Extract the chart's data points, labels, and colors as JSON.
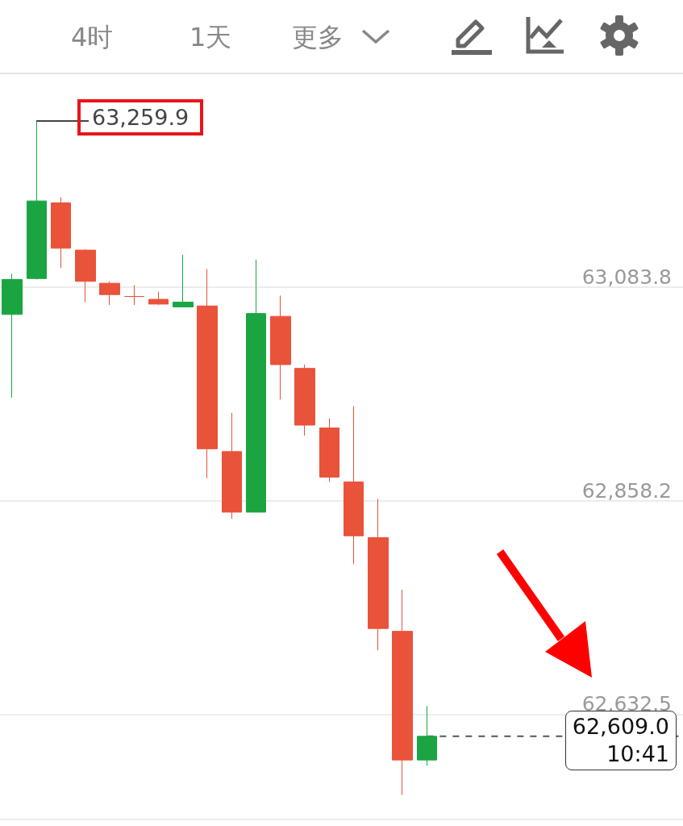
{
  "chart_data": {
    "type": "candlestick",
    "categories": [
      null,
      null,
      null,
      null,
      null,
      null,
      null,
      null,
      null,
      null,
      null,
      null,
      null,
      null,
      null,
      null,
      null,
      null,
      null,
      null,
      null,
      null,
      null,
      null,
      null,
      null,
      null,
      null
    ],
    "ohlc": [
      [
        63055,
        63098,
        62967,
        63092
      ],
      [
        63093,
        63259.9,
        63092,
        63175
      ],
      [
        63173,
        63179,
        63104,
        63125
      ],
      [
        63123,
        63124,
        63068,
        63090
      ],
      [
        63088,
        63090,
        63065,
        63076
      ],
      [
        63074,
        63086,
        63065,
        63074
      ],
      [
        63071,
        63079,
        63065,
        63066
      ],
      [
        63063,
        63118,
        63063,
        63068
      ],
      [
        63064,
        63103,
        62882,
        62913
      ],
      [
        62910,
        62951,
        62839,
        62846
      ],
      [
        62846,
        63113,
        62846,
        63056
      ],
      [
        63053,
        63075,
        62965,
        63002
      ],
      [
        62998,
        63002,
        62927,
        62938
      ],
      [
        62935,
        62945,
        62878,
        62883
      ],
      [
        62878,
        62958,
        62791,
        62821
      ],
      [
        62819,
        62860,
        62700,
        62723
      ],
      [
        62720,
        62764,
        62547,
        62584
      ],
      [
        62584,
        62641,
        62578,
        62609.0
      ],
      null,
      null,
      null,
      null,
      null,
      null,
      null,
      null,
      null,
      null
    ],
    "colors": [
      "#1aa542",
      "#1aa542",
      "#e8533a",
      "#e8533a",
      "#e8533a",
      "#e8533a",
      "#e8533a",
      "#1aa542",
      "#e8533a",
      "#e8533a",
      "#1aa542",
      "#e8533a",
      "#e8533a",
      "#e8533a",
      "#e8533a",
      "#e8533a",
      "#e8533a",
      "#1aa542",
      null,
      null,
      null,
      null,
      null,
      null,
      null,
      null,
      null,
      null
    ],
    "ylim": [
      62521,
      63309
    ],
    "yticks": [
      {
        "value": 63083.8,
        "label": "63,083.8"
      },
      {
        "value": 62858.2,
        "label": "62,858.2"
      },
      {
        "value": 62632.5,
        "label": "62,632.5"
      }
    ],
    "grid": "y",
    "ref_lines": [
      {
        "axis": "y",
        "value": 62609.0,
        "label": "62,609.0\n10:41",
        "line_style": "dashed",
        "color": "#555555"
      }
    ],
    "annotations": [
      "4时",
      "1天",
      "更多",
      "63,259.9"
    ]
  }
}
